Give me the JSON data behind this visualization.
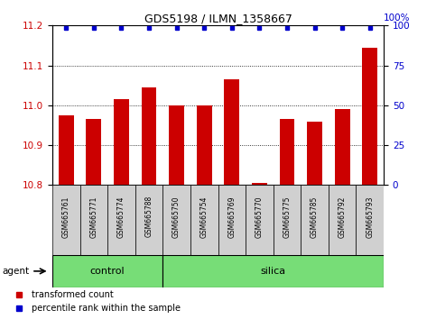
{
  "title": "GDS5198 / ILMN_1358667",
  "samples": [
    "GSM665761",
    "GSM665771",
    "GSM665774",
    "GSM665788",
    "GSM665750",
    "GSM665754",
    "GSM665769",
    "GSM665770",
    "GSM665775",
    "GSM665785",
    "GSM665792",
    "GSM665793"
  ],
  "groups": [
    "control",
    "control",
    "control",
    "control",
    "silica",
    "silica",
    "silica",
    "silica",
    "silica",
    "silica",
    "silica",
    "silica"
  ],
  "transformed_counts": [
    10.975,
    10.965,
    11.015,
    11.045,
    11.0,
    11.0,
    11.065,
    10.805,
    10.965,
    10.96,
    10.99,
    11.145
  ],
  "percentile_ranks": [
    100,
    100,
    100,
    100,
    100,
    100,
    100,
    100,
    100,
    100,
    100,
    100
  ],
  "ylim_left": [
    10.8,
    11.2
  ],
  "ylim_right": [
    0,
    100
  ],
  "yticks_left": [
    10.8,
    10.9,
    11.0,
    11.1,
    11.2
  ],
  "yticks_right": [
    0,
    25,
    50,
    75,
    100
  ],
  "bar_color": "#cc0000",
  "dot_color": "#0000cc",
  "control_color": "#77dd77",
  "silica_color": "#77dd77",
  "legend_red_label": "transformed count",
  "legend_blue_label": "percentile rank within the sample",
  "agent_label": "agent",
  "tick_color_left": "#cc0000",
  "tick_color_right": "#0000cc",
  "sample_bg": "#d0d0d0",
  "n_control": 4,
  "n_silica": 8
}
